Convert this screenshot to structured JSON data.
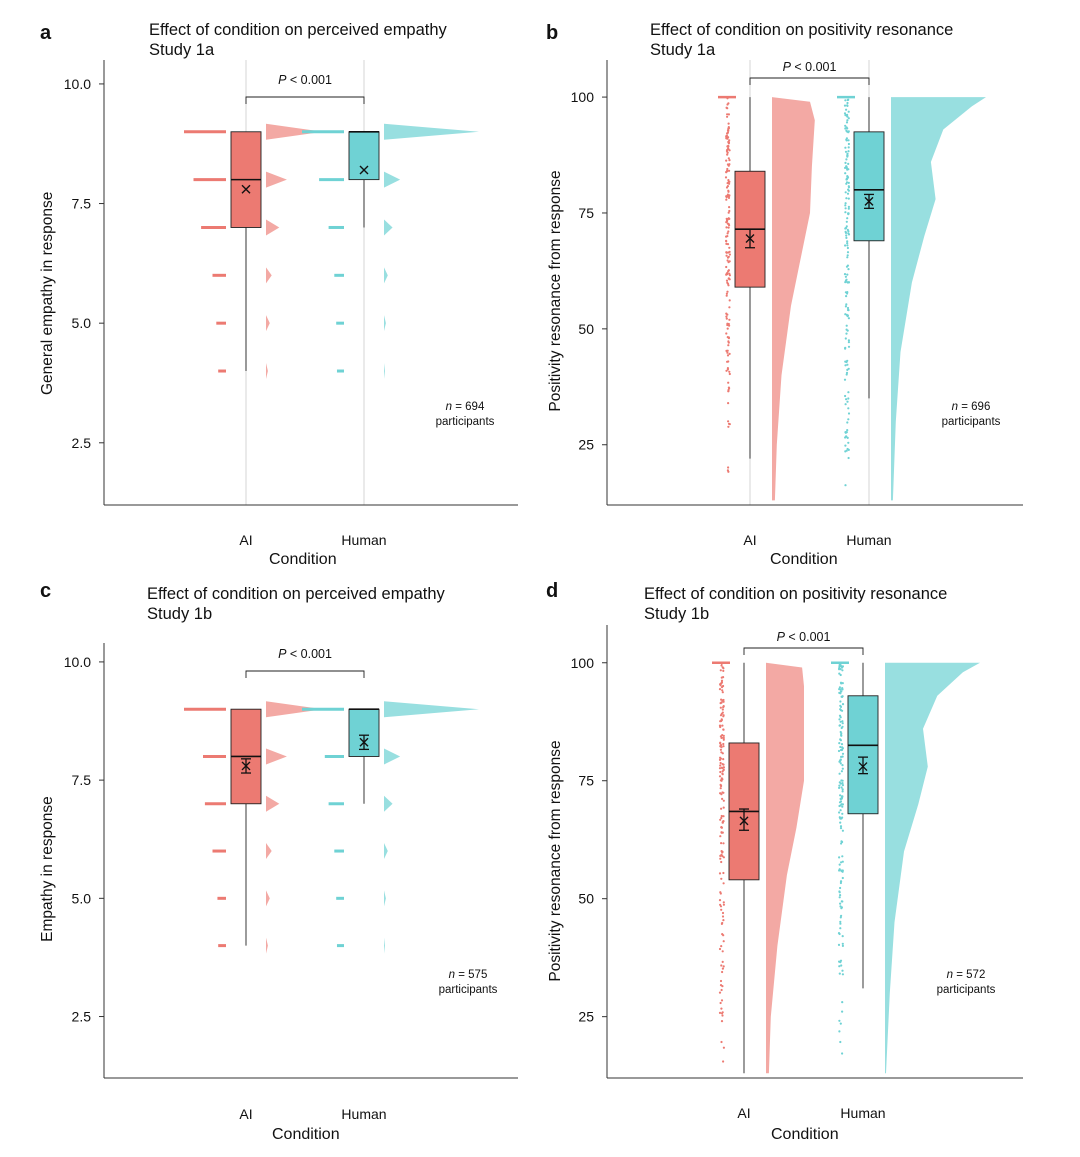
{
  "colors": {
    "ai": "#ec7a72",
    "human": "#6fd2d4",
    "ai_cloud": "#f3a9a4",
    "human_cloud": "#98dfe0",
    "line": "#222222",
    "axis": "#333333"
  },
  "chart_data": [
    {
      "type": "raincloud",
      "panel_label": "a",
      "title": "Effect of condition on perceived empathy",
      "subtitle": "Study 1a",
      "ylabel": "General empathy in response",
      "xlabel": "Condition",
      "ylim": [
        1.2,
        10.5
      ],
      "yticks": [
        2.5,
        5.0,
        7.5,
        10.0
      ],
      "ytick_labels": [
        "2.5",
        "5.0",
        "7.5",
        "10.0"
      ],
      "categories": [
        "AI",
        "Human"
      ],
      "grid": "vertical lines at categories",
      "series": [
        {
          "name": "AI",
          "box": {
            "min": 4,
            "q1": 7,
            "median": 8,
            "q3": 9,
            "max": 9
          },
          "mean": 7.8,
          "ci": [
            7.8,
            7.8
          ],
          "rain": [
            [
              4,
              0.1
            ],
            [
              5,
              0.15
            ],
            [
              6,
              0.25
            ],
            [
              7,
              0.55
            ],
            [
              8,
              0.75
            ],
            [
              9,
              1.0
            ]
          ],
          "cloud": [
            [
              4,
              0.02
            ],
            [
              5,
              0.04
            ],
            [
              6,
              0.06
            ],
            [
              7,
              0.14
            ],
            [
              8,
              0.22
            ],
            [
              9,
              0.6
            ]
          ]
        },
        {
          "name": "Human",
          "box": {
            "min": 7,
            "q1": 8,
            "median": 9,
            "q3": 9,
            "max": 9
          },
          "mean": 8.2,
          "ci": [
            8.2,
            8.2
          ],
          "rain": [
            [
              4,
              0.08
            ],
            [
              5,
              0.1
            ],
            [
              6,
              0.15
            ],
            [
              7,
              0.3
            ],
            [
              8,
              0.55
            ],
            [
              9,
              1.0
            ]
          ],
          "cloud": [
            [
              4,
              0.01
            ],
            [
              5,
              0.02
            ],
            [
              6,
              0.04
            ],
            [
              7,
              0.09
            ],
            [
              8,
              0.17
            ],
            [
              9,
              1.0
            ]
          ]
        }
      ],
      "significance": "P < 0.001",
      "n": "694",
      "n_unit": "participants"
    },
    {
      "type": "raincloud",
      "panel_label": "b",
      "title": "Effect of condition on positivity resonance",
      "subtitle": "Study 1a",
      "ylabel": "Positivity resonance from response",
      "xlabel": "Condition",
      "ylim": [
        12,
        108
      ],
      "yticks": [
        25,
        50,
        75,
        100
      ],
      "ytick_labels": [
        "25",
        "50",
        "75",
        "100"
      ],
      "categories": [
        "AI",
        "Human"
      ],
      "grid": "vertical lines at categories",
      "series": [
        {
          "name": "AI",
          "box": {
            "min": 22,
            "q1": 59,
            "median": 71.5,
            "q3": 84,
            "max": 100
          },
          "mean": 69.5,
          "ci": [
            67.5,
            71.5
          ],
          "cloud": [
            [
              13,
              0.03
            ],
            [
              25,
              0.05
            ],
            [
              40,
              0.1
            ],
            [
              55,
              0.2
            ],
            [
              65,
              0.3
            ],
            [
              75,
              0.4
            ],
            [
              85,
              0.42
            ],
            [
              95,
              0.45
            ],
            [
              99,
              0.4
            ],
            [
              100,
              0.0
            ]
          ]
        },
        {
          "name": "Human",
          "box": {
            "min": 35,
            "q1": 69,
            "median": 80,
            "q3": 92.5,
            "max": 100
          },
          "mean": 77.5,
          "ci": [
            76,
            79
          ],
          "cloud": [
            [
              13,
              0.02
            ],
            [
              30,
              0.05
            ],
            [
              45,
              0.1
            ],
            [
              60,
              0.22
            ],
            [
              70,
              0.35
            ],
            [
              78,
              0.47
            ],
            [
              86,
              0.42
            ],
            [
              93,
              0.55
            ],
            [
              98,
              0.85
            ],
            [
              100,
              1.0
            ]
          ]
        }
      ],
      "significance": "P < 0.001",
      "n": "696",
      "n_unit": "participants"
    },
    {
      "type": "raincloud",
      "panel_label": "c",
      "title": "Effect of condition on perceived empathy",
      "subtitle": "Study 1b",
      "ylabel": "Empathy in response",
      "xlabel": "Condition",
      "ylim": [
        1.2,
        10.4
      ],
      "yticks": [
        2.5,
        5.0,
        7.5,
        10.0
      ],
      "ytick_labels": [
        "2.5",
        "5.0",
        "7.5",
        "10.0"
      ],
      "categories": [
        "AI",
        "Human"
      ],
      "grid": "none",
      "series": [
        {
          "name": "AI",
          "box": {
            "min": 4,
            "q1": 7,
            "median": 8,
            "q3": 9,
            "max": 9
          },
          "mean": 7.8,
          "ci": [
            7.65,
            7.95
          ],
          "rain": [
            [
              4,
              0.1
            ],
            [
              5,
              0.12
            ],
            [
              6,
              0.25
            ],
            [
              7,
              0.45
            ],
            [
              8,
              0.5
            ],
            [
              9,
              1.0
            ]
          ],
          "cloud": [
            [
              4,
              0.02
            ],
            [
              5,
              0.04
            ],
            [
              6,
              0.06
            ],
            [
              7,
              0.14
            ],
            [
              8,
              0.22
            ],
            [
              9,
              0.6
            ]
          ]
        },
        {
          "name": "Human",
          "box": {
            "min": 7,
            "q1": 8,
            "median": 9,
            "q3": 9,
            "max": 9
          },
          "mean": 8.3,
          "ci": [
            8.15,
            8.45
          ],
          "rain": [
            [
              4,
              0.08
            ],
            [
              5,
              0.1
            ],
            [
              6,
              0.15
            ],
            [
              7,
              0.3
            ],
            [
              8,
              0.4
            ],
            [
              9,
              1.0
            ]
          ],
          "cloud": [
            [
              4,
              0.01
            ],
            [
              5,
              0.02
            ],
            [
              6,
              0.04
            ],
            [
              7,
              0.09
            ],
            [
              8,
              0.17
            ],
            [
              9,
              1.0
            ]
          ]
        }
      ],
      "significance": "P < 0.001",
      "n": "575",
      "n_unit": "participants"
    },
    {
      "type": "raincloud",
      "panel_label": "d",
      "title": "Effect of condition on positivity resonance",
      "subtitle": "Study 1b",
      "ylabel": "Positivity resonance from response",
      "xlabel": "Condition",
      "ylim": [
        12,
        108
      ],
      "yticks": [
        25,
        50,
        75,
        100
      ],
      "ytick_labels": [
        "25",
        "50",
        "75",
        "100"
      ],
      "categories": [
        "AI",
        "Human"
      ],
      "grid": "none",
      "series": [
        {
          "name": "AI",
          "box": {
            "min": 13,
            "q1": 54,
            "median": 68.5,
            "q3": 83,
            "max": 100
          },
          "mean": 66.5,
          "ci": [
            64.5,
            69
          ],
          "cloud": [
            [
              13,
              0.03
            ],
            [
              25,
              0.05
            ],
            [
              40,
              0.12
            ],
            [
              55,
              0.22
            ],
            [
              65,
              0.32
            ],
            [
              75,
              0.4
            ],
            [
              85,
              0.4
            ],
            [
              95,
              0.4
            ],
            [
              99,
              0.38
            ],
            [
              100,
              0.0
            ]
          ]
        },
        {
          "name": "Human",
          "box": {
            "min": 31,
            "q1": 68,
            "median": 82.5,
            "q3": 93,
            "max": 100
          },
          "mean": 78,
          "ci": [
            76.5,
            80
          ],
          "cloud": [
            [
              13,
              0.01
            ],
            [
              30,
              0.05
            ],
            [
              45,
              0.1
            ],
            [
              60,
              0.2
            ],
            [
              70,
              0.35
            ],
            [
              78,
              0.45
            ],
            [
              86,
              0.4
            ],
            [
              93,
              0.55
            ],
            [
              98,
              0.82
            ],
            [
              100,
              1.0
            ]
          ]
        }
      ],
      "significance": "P < 0.001",
      "n": "572",
      "n_unit": "participants"
    }
  ]
}
